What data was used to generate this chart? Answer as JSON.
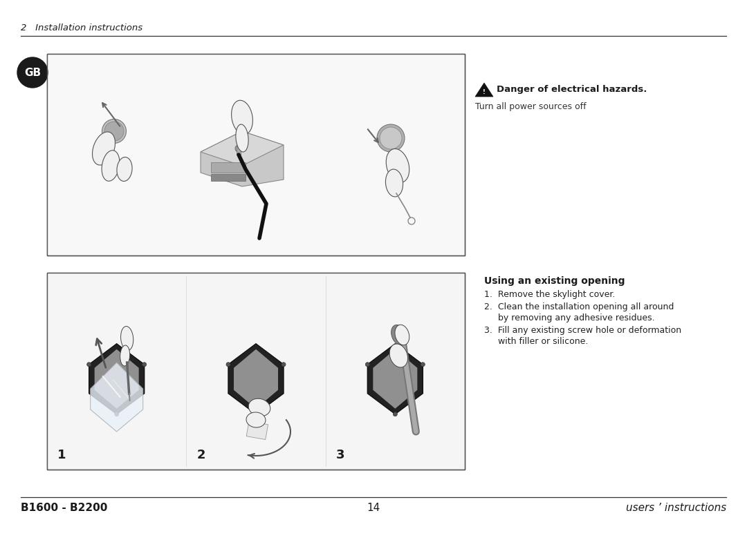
{
  "bg_color": "#ffffff",
  "header_text": "2   Installation instructions",
  "header_font_size": 9.5,
  "gb_text": "GB",
  "gb_bg": "#1a1a1a",
  "gb_fg": "#ffffff",
  "danger_title": "Danger of electrical hazards.",
  "danger_body": "Turn all power sources off",
  "using_title": "Using an existing opening",
  "step1": "1.  Remove the skylight cover.",
  "step2a": "2.  Clean the installation opening all around",
  "step2b": "     by removing any adhesive residues.",
  "step3a": "3.  Fill any existing screw hole or deformation",
  "step3b": "     with filler or silicone.",
  "footer_left": "B1600 - B2200",
  "footer_center": "14",
  "footer_right": "users ’ instructions"
}
